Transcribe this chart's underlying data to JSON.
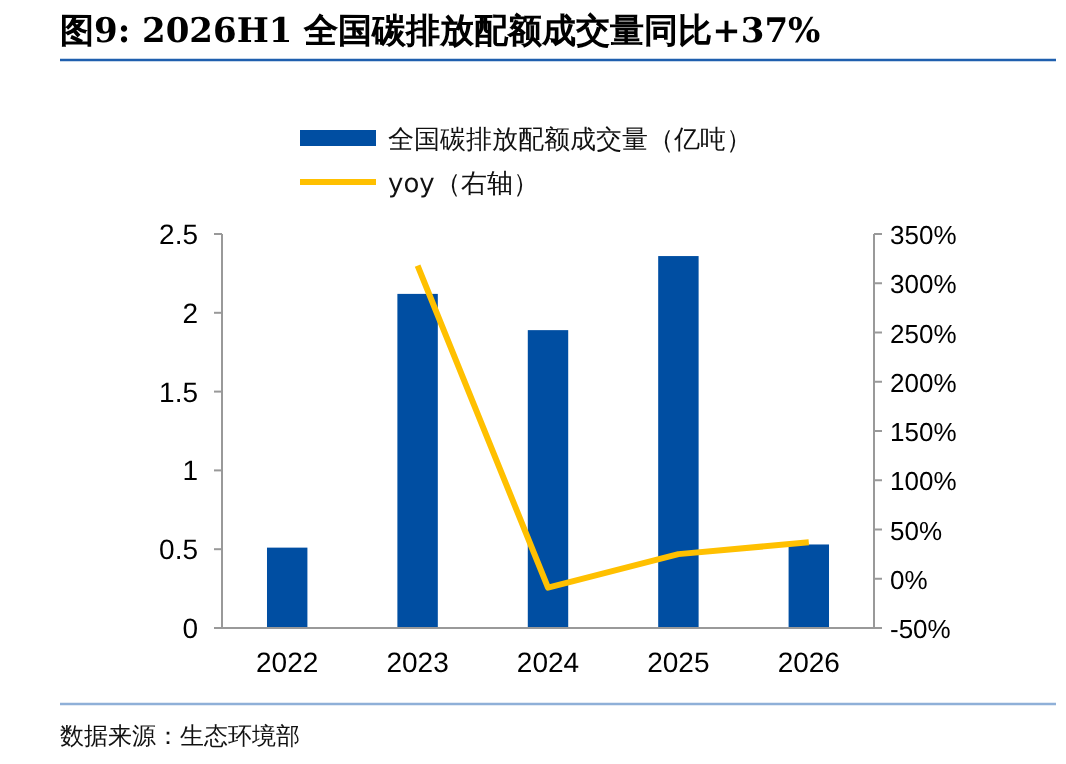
{
  "chart_data": {
    "type": "bar",
    "title": "图9: 2026H1 全国碳排放配额成交量同比+37%",
    "categories": [
      "2022",
      "2023",
      "2024",
      "2025",
      "2026"
    ],
    "series": [
      {
        "name": "全国碳排放配额成交量（亿吨）",
        "color": "#004ea2",
        "values": [
          0.51,
          2.12,
          1.89,
          2.36,
          0.53
        ]
      },
      {
        "name": "yoy（右轴）",
        "type": "line",
        "axis": "y2",
        "color": "#ffc000",
        "values": [
          null,
          318,
          -9,
          25,
          37
        ]
      }
    ],
    "ylim": [
      0,
      2.5
    ],
    "yticks": [
      0,
      0.5,
      1,
      1.5,
      2,
      2.5
    ],
    "y2lim": [
      -50,
      350
    ],
    "y2ticks": [
      {
        "value": -50,
        "label": "-50%"
      },
      {
        "value": 0,
        "label": "0%"
      },
      {
        "value": 50,
        "label": "50%"
      },
      {
        "value": 100,
        "label": "100%"
      },
      {
        "value": 150,
        "label": "150%"
      },
      {
        "value": 200,
        "label": "200%"
      },
      {
        "value": 250,
        "label": "250%"
      },
      {
        "value": 300,
        "label": "300%"
      },
      {
        "value": 350,
        "label": "350%"
      }
    ],
    "legend": "top",
    "grid": false,
    "annotations": [
      "数据来源：生态环境部"
    ]
  }
}
